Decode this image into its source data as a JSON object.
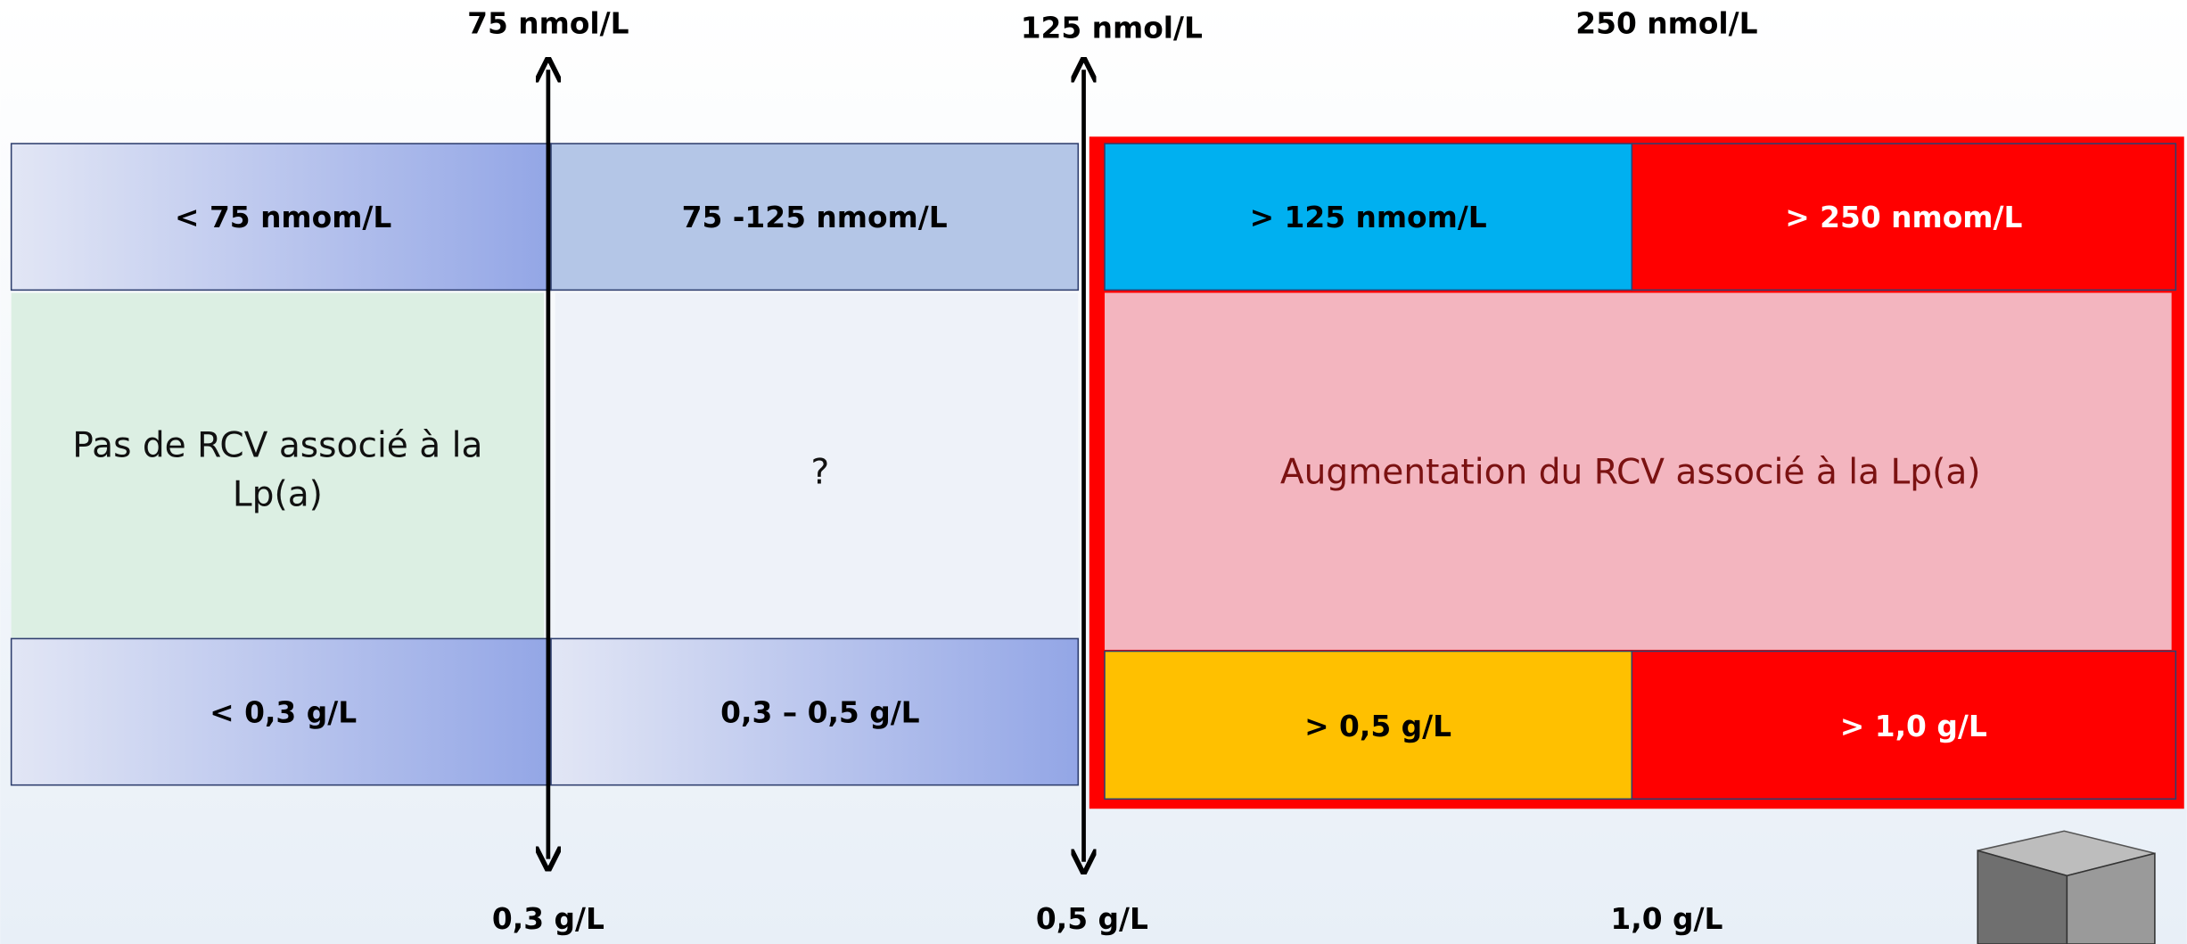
{
  "axis_labels": {
    "top": [
      "75 nmol/L",
      "125 nmol/L",
      "250 nmol/L"
    ],
    "bottom": [
      "0,3  g/L",
      "0,5  g/L",
      "1,0  g/L"
    ]
  },
  "left": {
    "nmol": [
      "< 75 nmom/L",
      "75 -125  nmom/L"
    ],
    "risk_low": [
      "Pas de RCV associé à la",
      "Lp(a)"
    ],
    "risk_unknown": "?",
    "gl": [
      "< 0,3 g/L",
      "0,3 – 0,5 g/L"
    ]
  },
  "right": {
    "nmol": [
      "> 125  nmom/L",
      "> 250  nmom/L"
    ],
    "risk_high": "Augmentation du RCV associé à la Lp(a)",
    "gl": [
      "> 0,5 g/L",
      "> 1,0 g/L"
    ]
  }
}
